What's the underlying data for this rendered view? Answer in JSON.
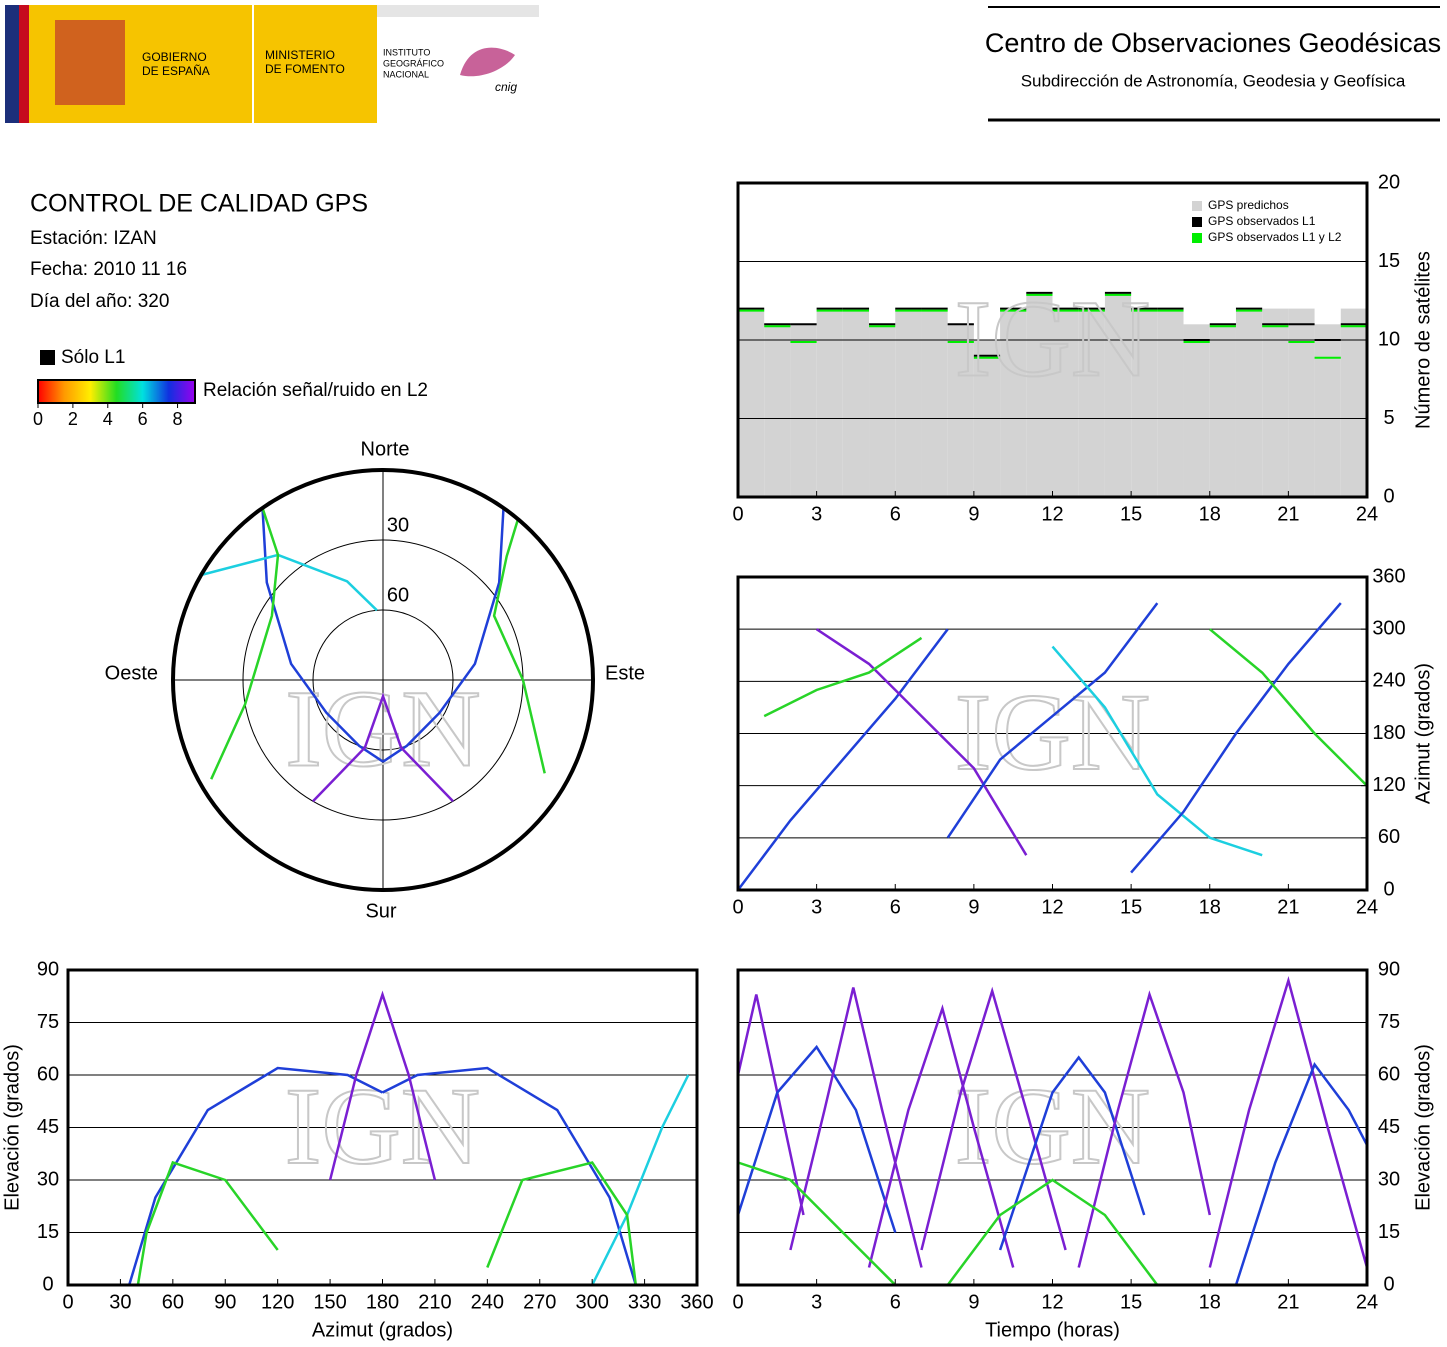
{
  "header": {
    "gov": [
      "GOBIERNO",
      "DE ESPAÑA"
    ],
    "ministry": [
      "MINISTERIO",
      "DE FOMENTO"
    ],
    "institute": [
      "INSTITUTO",
      "GEOGRÁFICO",
      "NACIONAL"
    ],
    "logo_text": "cnig",
    "center": "Centro de Observaciones Geodésicas",
    "subdir": "Subdirección de Astronomía, Geodesia y Geofísica"
  },
  "info": {
    "title": "CONTROL DE CALIDAD GPS",
    "station": "Estación: IZAN",
    "date": "Fecha: 2010 11 16",
    "doy": "Día del año: 320"
  },
  "color_legend": {
    "l1_only": "Sólo L1",
    "label": "Relación señal/ruido en L2",
    "lim": [
      0,
      9
    ],
    "ticks": [
      0,
      2,
      4,
      6,
      8
    ],
    "colors": [
      "#ff0000",
      "#ff9900",
      "#ffee00",
      "#22dd22",
      "#00e0e0",
      "#1030e0",
      "#9900ee"
    ]
  },
  "chart_data": [
    {
      "type": "step",
      "watermark": "IGN",
      "ylabel": "Número de satélites",
      "yaxis_side": "right",
      "grid": true,
      "xlim": [
        0,
        24
      ],
      "xticks": [
        0,
        3,
        6,
        9,
        12,
        15,
        18,
        21,
        24
      ],
      "ylim": [
        0,
        20
      ],
      "yticks": [
        0,
        5,
        10,
        15,
        20
      ],
      "x": [
        0,
        1,
        2,
        3,
        4,
        5,
        6,
        7,
        8,
        9,
        10,
        11,
        12,
        13,
        14,
        15,
        16,
        17,
        18,
        19,
        20,
        21,
        22,
        23
      ],
      "series": [
        {
          "name": "GPS predichos",
          "color": "#d3d3d3",
          "values": [
            12,
            11,
            11,
            12,
            12,
            11,
            12,
            12,
            11,
            10,
            12,
            13,
            12,
            12,
            13,
            12,
            12,
            11,
            11,
            12,
            12,
            12,
            11,
            12
          ]
        },
        {
          "name": "GPS observados L1",
          "color": "#000000",
          "values": [
            12,
            11,
            11,
            12,
            12,
            11,
            12,
            12,
            11,
            9,
            12,
            13,
            12,
            12,
            13,
            12,
            12,
            10,
            11,
            12,
            11,
            11,
            10,
            11
          ]
        },
        {
          "name": "GPS observados L1 y L2",
          "color": "#00ee00",
          "values": [
            12,
            11,
            10,
            12,
            12,
            11,
            12,
            12,
            10,
            9,
            12,
            13,
            12,
            12,
            13,
            12,
            12,
            10,
            11,
            12,
            11,
            10,
            9,
            11
          ]
        }
      ]
    },
    {
      "type": "polar",
      "watermark": "IGN",
      "labels": {
        "north": "Norte",
        "south": "Sur",
        "east": "Este",
        "west": "Oeste"
      },
      "rlim": [
        0,
        90
      ],
      "rticks": [
        30,
        60
      ],
      "series": [
        {
          "color": "#1f3fd8",
          "x": [
            35,
            50,
            80,
            120,
            160,
            180
          ],
          "values": [
            0,
            25,
            50,
            62,
            60,
            55
          ]
        },
        {
          "color": "#1f3fd8",
          "x": [
            180,
            200,
            240,
            280,
            310,
            325
          ],
          "values": [
            55,
            60,
            62,
            50,
            25,
            0
          ]
        },
        {
          "color": "#7a1fd2",
          "x": [
            150,
            165,
            180,
            195,
            210
          ],
          "values": [
            30,
            60,
            83,
            60,
            30
          ]
        },
        {
          "color": "#1ccfe0",
          "x": [
            300,
            320,
            340,
            355
          ],
          "values": [
            0,
            20,
            45,
            60
          ]
        },
        {
          "color": "#28d428",
          "x": [
            40,
            45,
            60,
            90,
            120
          ],
          "values": [
            0,
            15,
            35,
            30,
            10
          ]
        },
        {
          "color": "#28d428",
          "x": [
            240,
            260,
            300,
            320,
            325
          ],
          "values": [
            5,
            30,
            35,
            20,
            0
          ]
        }
      ]
    },
    {
      "type": "line",
      "watermark": "IGN",
      "ylabel": "Azimut (grados)",
      "yaxis_side": "right",
      "grid": true,
      "xlim": [
        0,
        24
      ],
      "xticks": [
        0,
        3,
        6,
        9,
        12,
        15,
        18,
        21,
        24
      ],
      "ylim": [
        0,
        360
      ],
      "yticks": [
        0,
        60,
        120,
        180,
        240,
        300,
        360
      ],
      "series": [
        {
          "color": "#1f3fd8",
          "x": [
            0,
            2,
            4,
            6,
            8
          ],
          "values": [
            0,
            80,
            150,
            220,
            300
          ]
        },
        {
          "color": "#7a1fd2",
          "x": [
            3,
            5,
            7,
            9,
            11
          ],
          "values": [
            300,
            260,
            200,
            140,
            40
          ]
        },
        {
          "color": "#1f3fd8",
          "x": [
            8,
            10,
            12,
            14,
            16
          ],
          "values": [
            60,
            150,
            200,
            250,
            330
          ]
        },
        {
          "color": "#1ccfe0",
          "x": [
            12,
            14,
            16,
            18,
            20
          ],
          "values": [
            280,
            210,
            110,
            60,
            40
          ]
        },
        {
          "color": "#1f3fd8",
          "x": [
            15,
            17,
            19,
            21,
            23
          ],
          "values": [
            20,
            90,
            180,
            260,
            330
          ]
        },
        {
          "color": "#28d428",
          "x": [
            1,
            3,
            5,
            7
          ],
          "values": [
            200,
            230,
            250,
            290
          ]
        },
        {
          "color": "#28d428",
          "x": [
            18,
            20,
            22,
            24
          ],
          "values": [
            300,
            250,
            180,
            120
          ]
        }
      ]
    },
    {
      "type": "line",
      "watermark": "IGN",
      "xlabel": "Azimut (grados)",
      "ylabel": "Elevación (grados)",
      "yaxis_side": "left",
      "grid": true,
      "xlim": [
        0,
        360
      ],
      "xticks": [
        0,
        30,
        60,
        90,
        120,
        150,
        180,
        210,
        240,
        270,
        300,
        330,
        360
      ],
      "ylim": [
        0,
        90
      ],
      "yticks": [
        0,
        15,
        30,
        45,
        60,
        75,
        90
      ],
      "series": [
        {
          "color": "#1f3fd8",
          "x": [
            35,
            50,
            80,
            120,
            160,
            180
          ],
          "values": [
            0,
            25,
            50,
            62,
            60,
            55
          ]
        },
        {
          "color": "#1f3fd8",
          "x": [
            180,
            200,
            240,
            280,
            310,
            325
          ],
          "values": [
            55,
            60,
            62,
            50,
            25,
            0
          ]
        },
        {
          "color": "#7a1fd2",
          "x": [
            150,
            165,
            180,
            195,
            210
          ],
          "values": [
            30,
            60,
            83,
            60,
            30
          ]
        },
        {
          "color": "#1ccfe0",
          "x": [
            300,
            320,
            340,
            355
          ],
          "values": [
            0,
            20,
            45,
            60
          ]
        },
        {
          "color": "#28d428",
          "x": [
            40,
            45,
            60,
            90,
            120
          ],
          "values": [
            0,
            15,
            35,
            30,
            10
          ]
        },
        {
          "color": "#28d428",
          "x": [
            240,
            260,
            300,
            320,
            325
          ],
          "values": [
            5,
            30,
            35,
            20,
            0
          ]
        }
      ]
    },
    {
      "type": "line",
      "watermark": "IGN",
      "xlabel": "Tiempo (horas)",
      "ylabel": "Elevación (grados)",
      "yaxis_side": "right",
      "grid": true,
      "xlim": [
        0,
        24
      ],
      "xticks": [
        0,
        3,
        6,
        9,
        12,
        15,
        18,
        21,
        24
      ],
      "ylim": [
        0,
        90
      ],
      "yticks": [
        0,
        15,
        30,
        45,
        60,
        75,
        90
      ],
      "series": [
        {
          "color": "#7a1fd2",
          "x": [
            0,
            0.7,
            1.5,
            2.5
          ],
          "values": [
            60,
            83,
            55,
            20
          ]
        },
        {
          "color": "#1f3fd8",
          "x": [
            0,
            1.5,
            3,
            4.5,
            6
          ],
          "values": [
            20,
            55,
            68,
            50,
            15
          ]
        },
        {
          "color": "#7a1fd2",
          "x": [
            2,
            3.3,
            4.4,
            5.5,
            7
          ],
          "values": [
            10,
            50,
            85,
            50,
            5
          ]
        },
        {
          "color": "#7a1fd2",
          "x": [
            5,
            6.5,
            7.8,
            9,
            10.5
          ],
          "values": [
            5,
            50,
            79,
            45,
            5
          ]
        },
        {
          "color": "#7a1fd2",
          "x": [
            7,
            8.5,
            9.7,
            11,
            12.5
          ],
          "values": [
            10,
            55,
            84,
            50,
            10
          ]
        },
        {
          "color": "#1f3fd8",
          "x": [
            10,
            12,
            13,
            14,
            15.5
          ],
          "values": [
            10,
            55,
            65,
            55,
            20
          ]
        },
        {
          "color": "#7a1fd2",
          "x": [
            13,
            14.5,
            15.7,
            17,
            18
          ],
          "values": [
            5,
            50,
            83,
            55,
            20
          ]
        },
        {
          "color": "#7a1fd2",
          "x": [
            18,
            19.5,
            21,
            22.5,
            24
          ],
          "values": [
            5,
            50,
            87,
            45,
            5
          ]
        },
        {
          "color": "#1f3fd8",
          "x": [
            19,
            20.5,
            22,
            23.3,
            24
          ],
          "values": [
            0,
            35,
            63,
            50,
            40
          ]
        },
        {
          "color": "#28d428",
          "x": [
            0,
            2,
            4,
            6
          ],
          "values": [
            35,
            30,
            15,
            0
          ]
        },
        {
          "color": "#28d428",
          "x": [
            8,
            10,
            12,
            14,
            16
          ],
          "values": [
            0,
            20,
            30,
            20,
            0
          ]
        }
      ]
    }
  ]
}
